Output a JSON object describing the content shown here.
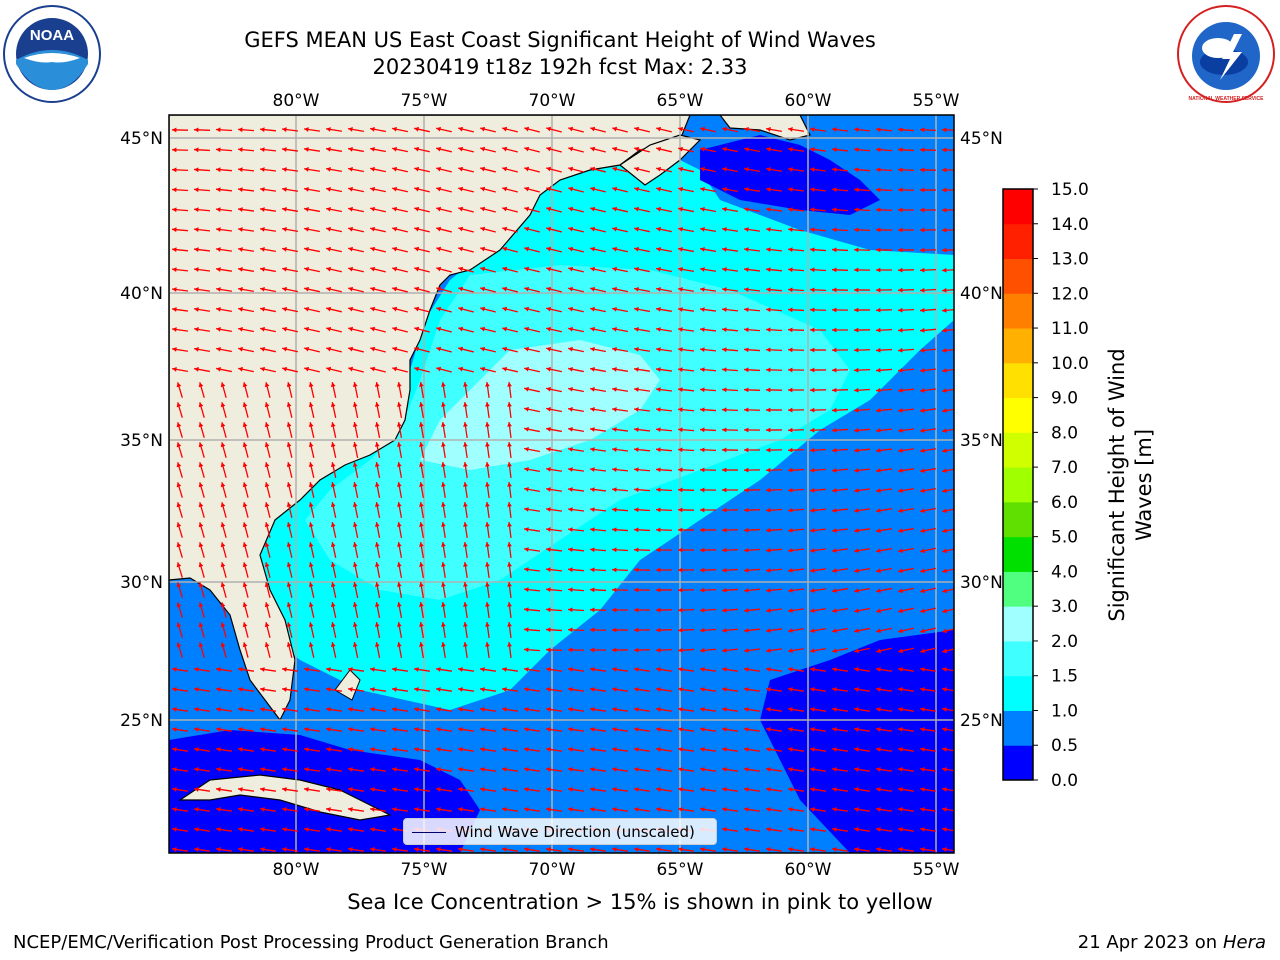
{
  "title": {
    "line1": "GEFS MEAN US East Coast Significant Height of Wind Waves",
    "line2": "20230419 t18z 192h fcst   Max: 2.33"
  },
  "map": {
    "lon_ticks": [
      "80°W",
      "75°W",
      "70°W",
      "65°W",
      "60°W",
      "55°W"
    ],
    "lat_ticks": [
      "45°N",
      "40°N",
      "35°N",
      "30°N",
      "25°N"
    ],
    "legend_label": "Wind Wave Direction (unscaled)",
    "colors": {
      "land": "#efedde",
      "gridline": "#b0b0b0",
      "arrow": "#ff0000",
      "coastline": "#000000"
    }
  },
  "colorbar": {
    "label_line1": "Significant Height of Wind",
    "label_line2": "Waves [m]",
    "ticks": [
      "0.0",
      "0.5",
      "1.0",
      "1.5",
      "2.0",
      "3.0",
      "4.0",
      "5.0",
      "6.0",
      "7.0",
      "8.0",
      "9.0",
      "10.0",
      "11.0",
      "12.0",
      "13.0",
      "14.0",
      "15.0"
    ],
    "colors": [
      "#0000ff",
      "#0080ff",
      "#00ffff",
      "#40ffff",
      "#a0ffff",
      "#50ff80",
      "#00e000",
      "#60e000",
      "#a0ff00",
      "#d0ff00",
      "#ffff00",
      "#ffe000",
      "#ffb000",
      "#ff8000",
      "#ff5000",
      "#ff2000",
      "#ff0000"
    ]
  },
  "ice_note": "Sea Ice Concentration > 15% is shown in pink to yellow",
  "footer": {
    "left": "NCEP/EMC/Verification Post Processing Product Generation Branch",
    "right_date": "21 Apr 2023 on ",
    "right_machine": "Hera"
  },
  "logos": {
    "noaa_text": "NOAA",
    "nws_text": "NATIONAL WEATHER SERVICE"
  }
}
